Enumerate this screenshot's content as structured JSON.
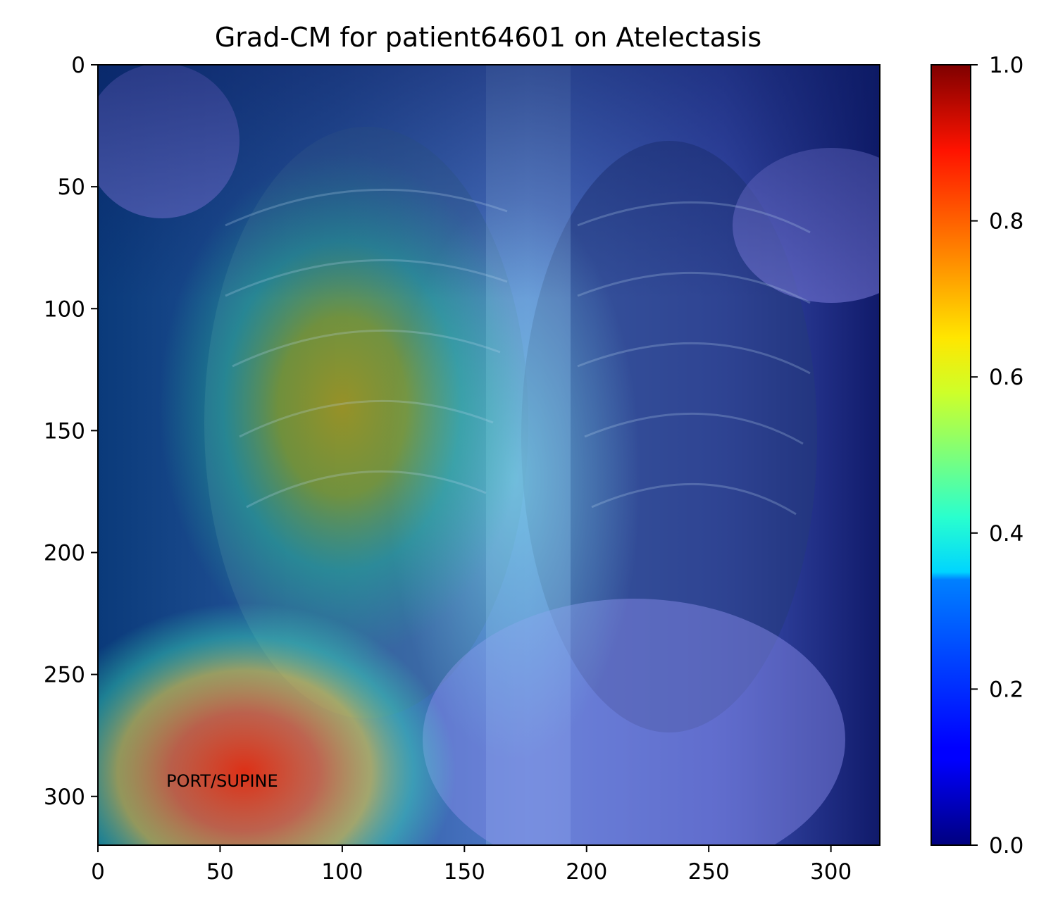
{
  "chart_data": {
    "type": "heatmap",
    "title": "Grad-CM for patient64601 on Atelectasis",
    "xlabel": "",
    "ylabel": "",
    "xlim": [
      0,
      320
    ],
    "ylim": [
      320,
      0
    ],
    "x_ticks": [
      0,
      50,
      100,
      150,
      200,
      250,
      300
    ],
    "y_ticks": [
      0,
      50,
      100,
      150,
      200,
      250,
      300
    ],
    "colorbar": {
      "colormap": "jet",
      "range": [
        0.0,
        1.0
      ],
      "ticks": [
        "0.0",
        "0.2",
        "0.4",
        "0.6",
        "0.8",
        "1.0"
      ]
    },
    "image_annotations": [
      {
        "text": "PORT/SUPINE",
        "x": 28,
        "y": 296
      }
    ],
    "hotspots": [
      {
        "label": "lower-left activation",
        "x": 60,
        "y": 290,
        "value": 0.9
      },
      {
        "label": "right upper lung activation",
        "x": 100,
        "y": 140,
        "value": 0.65
      }
    ]
  }
}
